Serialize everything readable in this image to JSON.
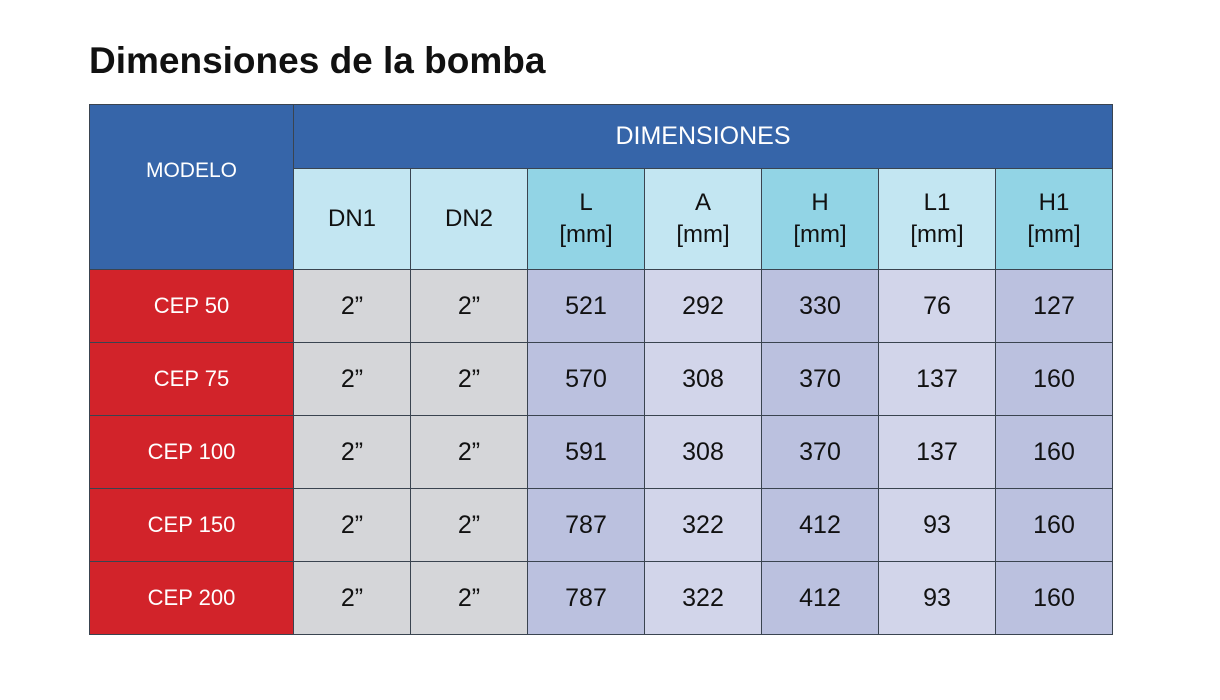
{
  "title": "Dimensiones de la bomba",
  "table": {
    "model_header": "MODELO",
    "group_header": "DIMENSIONES",
    "columns": [
      {
        "label": "DN1",
        "unit": ""
      },
      {
        "label": "DN2",
        "unit": ""
      },
      {
        "label": "L",
        "unit": "[mm]"
      },
      {
        "label": "A",
        "unit": "[mm]"
      },
      {
        "label": "H",
        "unit": "[mm]"
      },
      {
        "label": "L1",
        "unit": "[mm]"
      },
      {
        "label": "H1",
        "unit": "[mm]"
      }
    ],
    "rows": [
      {
        "model": "CEP 50",
        "values": [
          "2”",
          "2”",
          "521",
          "292",
          "330",
          "76",
          "127"
        ]
      },
      {
        "model": "CEP 75",
        "values": [
          "2”",
          "2”",
          "570",
          "308",
          "370",
          "137",
          "160"
        ]
      },
      {
        "model": "CEP 100",
        "values": [
          "2”",
          "2”",
          "591",
          "308",
          "370",
          "137",
          "160"
        ]
      },
      {
        "model": "CEP 150",
        "values": [
          "2”",
          "2”",
          "787",
          "322",
          "412",
          "93",
          "160"
        ]
      },
      {
        "model": "CEP 200",
        "values": [
          "2”",
          "2”",
          "787",
          "322",
          "412",
          "93",
          "160"
        ]
      }
    ]
  },
  "colors": {
    "header_blue": "#3665a9",
    "model_red": "#d2232a",
    "subheader_light": "#c3e6f2",
    "subheader_dark": "#92d4e5",
    "dn_gray": "#d5d6d9",
    "value_dark": "#bbc1df",
    "value_light": "#d2d5ea"
  }
}
